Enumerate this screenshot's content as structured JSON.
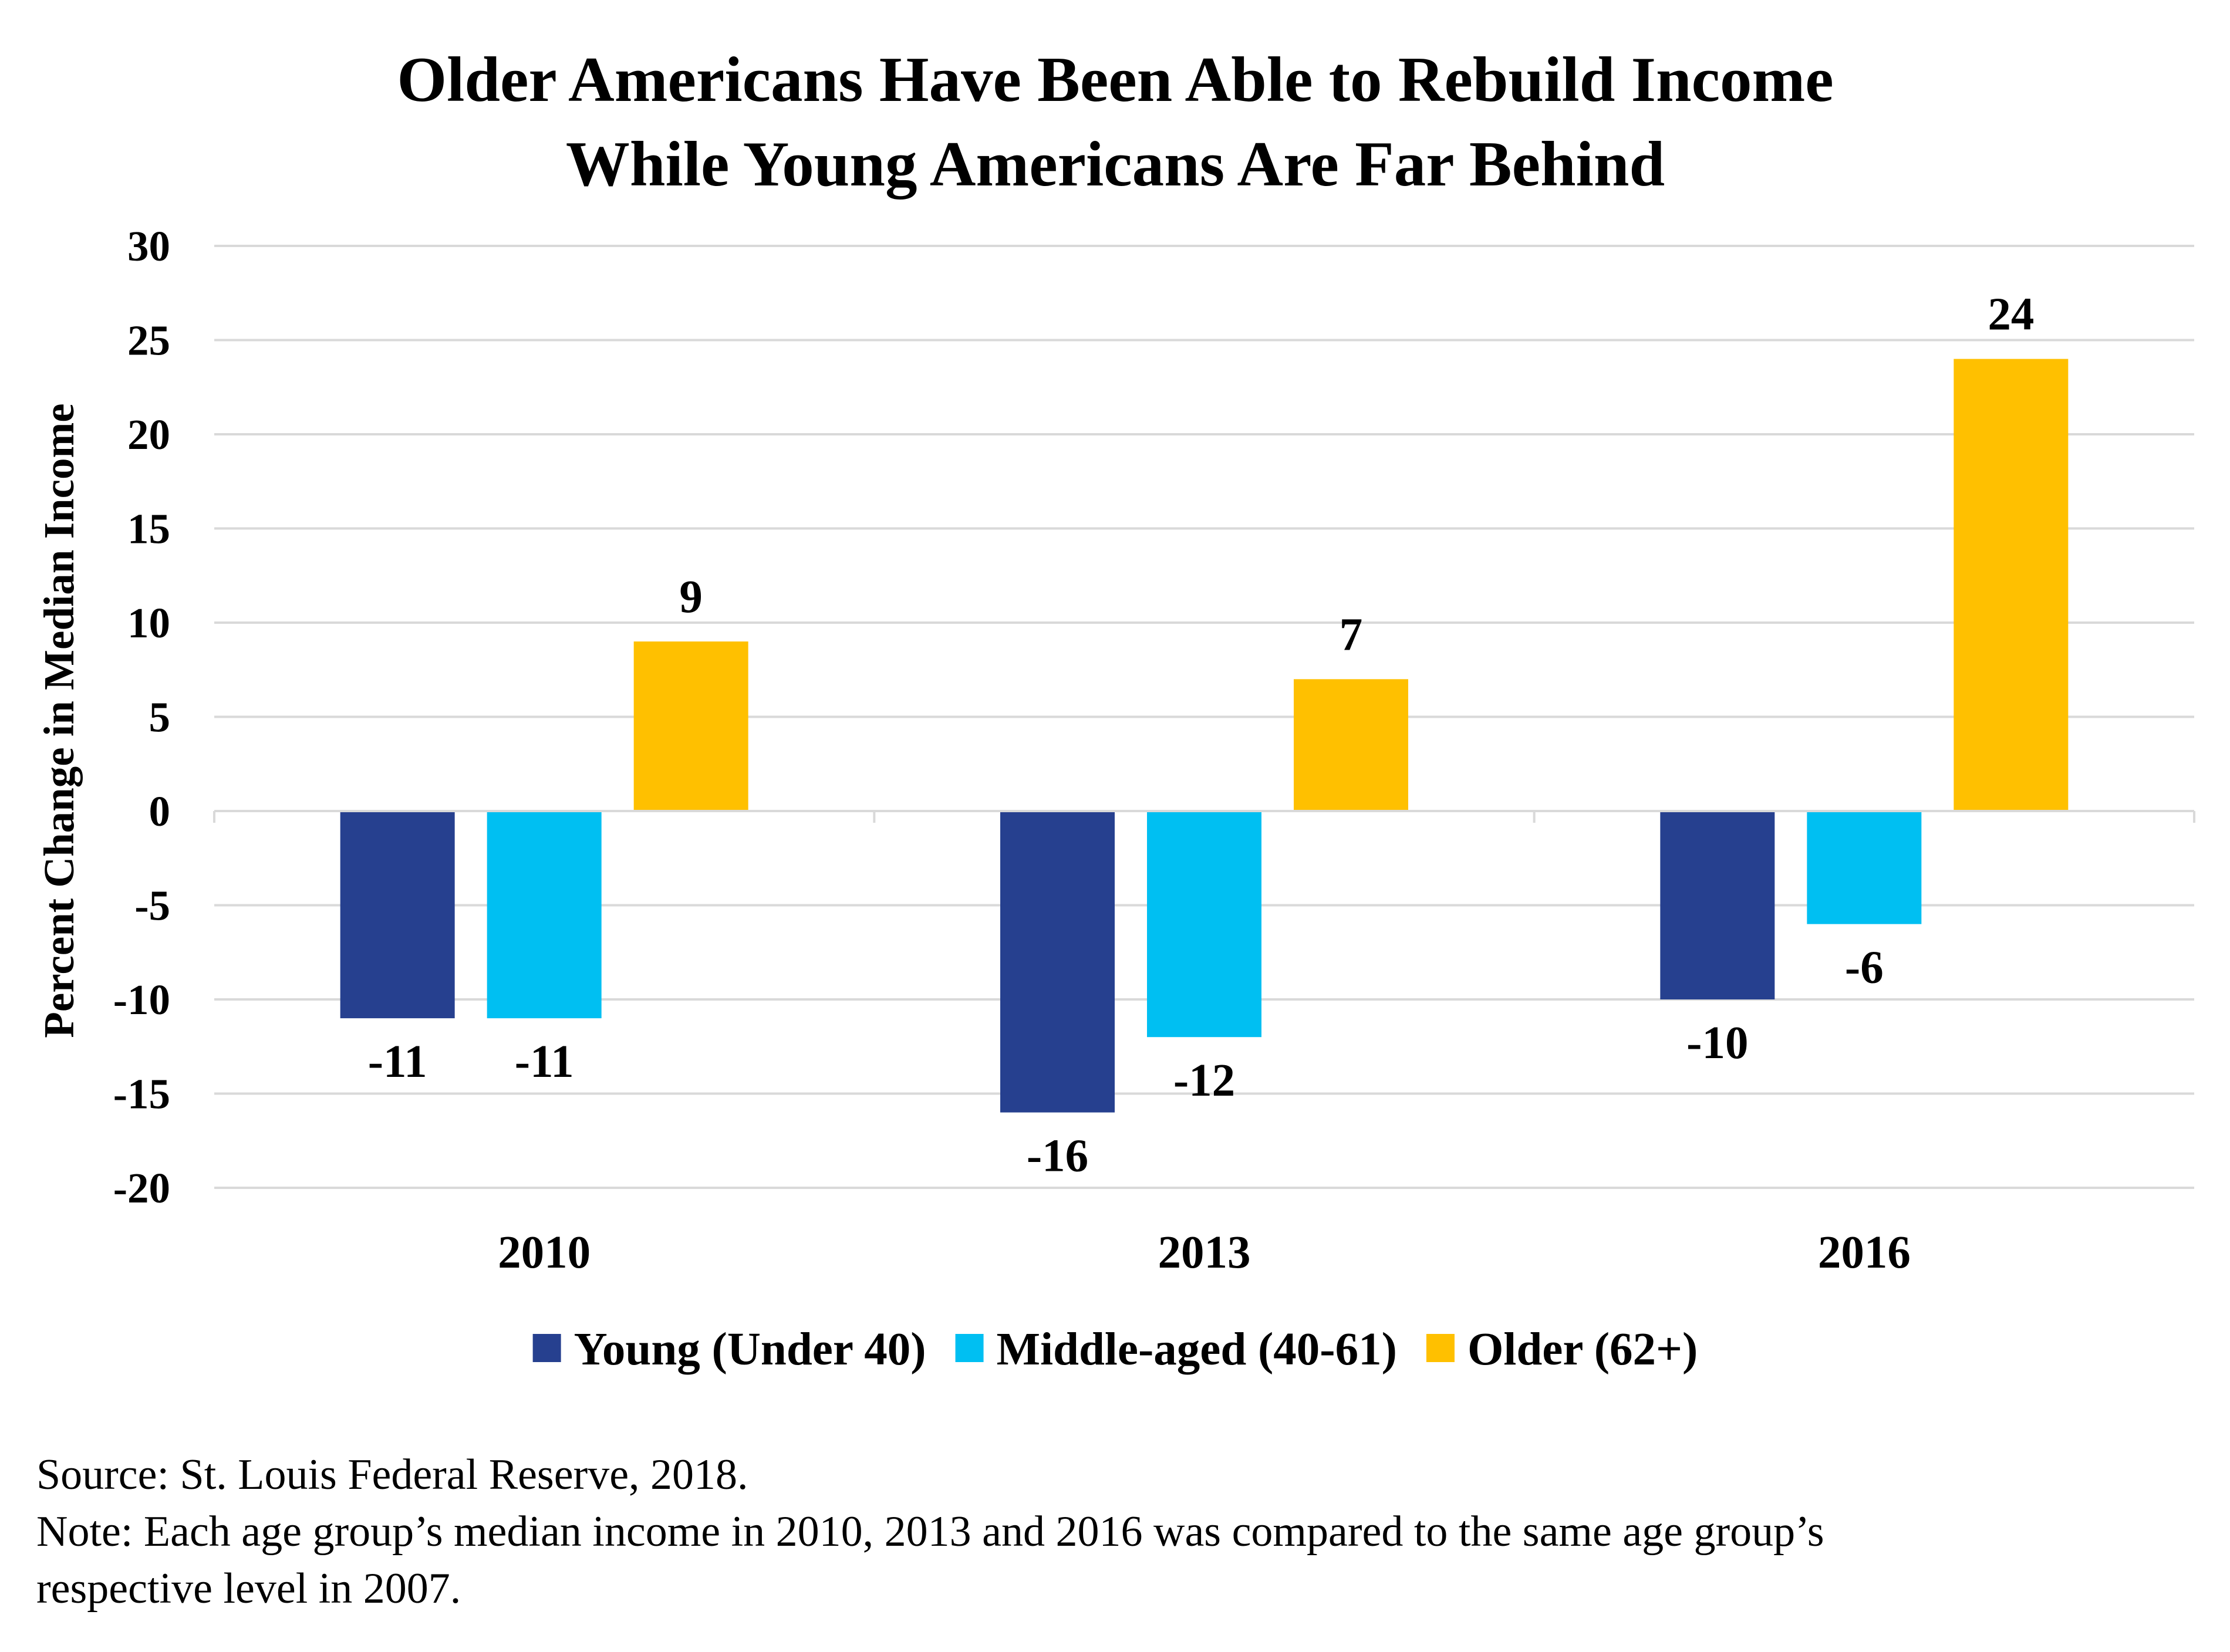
{
  "chart_data": {
    "type": "bar",
    "title_lines": [
      "Older Americans Have Been Able to Rebuild Income",
      "While Young Americans Are Far Behind"
    ],
    "xlabel": "",
    "ylabel": "Percent Change in Median Income",
    "ylim": [
      -20,
      30
    ],
    "ytick_step": 5,
    "grid": true,
    "legend_position": "bottom",
    "categories": [
      "2010",
      "2013",
      "2016"
    ],
    "series": [
      {
        "name": "Young (Under 40)",
        "color": "#26408f",
        "values": [
          -11,
          -16,
          -10
        ]
      },
      {
        "name": "Middle-aged (40-61)",
        "color": "#00bff2",
        "values": [
          -11,
          -12,
          -6
        ]
      },
      {
        "name": "Older (62+)",
        "color": "#ffc000",
        "values": [
          9,
          7,
          24
        ]
      }
    ]
  },
  "footnotes": {
    "source": "Source: St. Louis Federal Reserve, 2018.",
    "note_line1": "Note:  Each age group’s median income in 2010, 2013 and 2016 was compared to the same age group’s",
    "note_line2": "respective level in 2007."
  }
}
